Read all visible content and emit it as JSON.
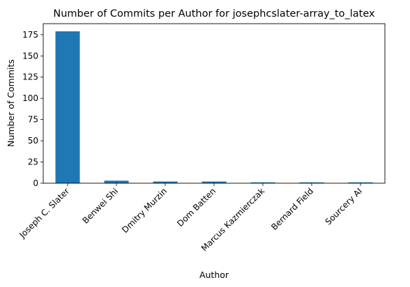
{
  "chart_data": {
    "type": "bar",
    "title": "Number of Commits per Author for josephcslater-array_to_latex",
    "xlabel": "Author",
    "ylabel": "Number of Commits",
    "categories": [
      "Joseph C. Slater",
      "Benwei Shi",
      "Dmitry Murzin",
      "Dom Batten",
      "Marcus Kazmierczak",
      "Bernard Field",
      "Sourcery AI"
    ],
    "values": [
      179,
      3,
      2,
      2,
      1,
      1,
      1
    ],
    "ylim": [
      0,
      188
    ],
    "yticks": [
      0,
      25,
      50,
      75,
      100,
      125,
      150,
      175
    ],
    "grid": false,
    "legend": "none",
    "bar_color": "#1f77b4"
  }
}
